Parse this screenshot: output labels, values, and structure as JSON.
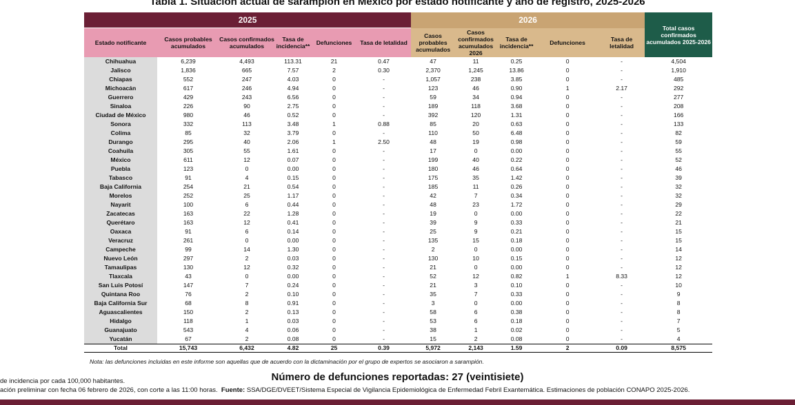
{
  "title": "Tabla 1. Situación actual de sarampión en México por estado notificante y año de registro, 2025-2026",
  "table": {
    "groups": [
      "2025",
      "2026",
      "Total casos confirmados acumulados 2025-2026"
    ],
    "columns": [
      "Estado notificante",
      "Casos probables acumulados",
      "Casos confirmados acumulados",
      "Tasa de incidencia**",
      "Defunciones",
      "Tasa de letalidad",
      "Casos probables acumulados",
      "Casos confirmados acumulados 2026",
      "Tasa de incidencia**",
      "Defunciones",
      "Tasa de letalidad"
    ],
    "rows": [
      [
        "Chihuahua",
        "6,239",
        "4,493",
        "113.31",
        "21",
        "0.47",
        "47",
        "11",
        "0.25",
        "0",
        "-",
        "4,504"
      ],
      [
        "Jalisco",
        "1,836",
        "665",
        "7.57",
        "2",
        "0.30",
        "2,370",
        "1,245",
        "13.86",
        "0",
        "-",
        "1,910"
      ],
      [
        "Chiapas",
        "552",
        "247",
        "4.03",
        "0",
        "-",
        "1,057",
        "238",
        "3.85",
        "0",
        "-",
        "485"
      ],
      [
        "Michoacán",
        "617",
        "246",
        "4.94",
        "0",
        "-",
        "123",
        "46",
        "0.90",
        "1",
        "2.17",
        "292"
      ],
      [
        "Guerrero",
        "429",
        "243",
        "6.56",
        "0",
        "-",
        "59",
        "34",
        "0.94",
        "0",
        "-",
        "277"
      ],
      [
        "Sinaloa",
        "226",
        "90",
        "2.75",
        "0",
        "-",
        "189",
        "118",
        "3.68",
        "0",
        "-",
        "208"
      ],
      [
        "Ciudad de México",
        "980",
        "46",
        "0.52",
        "0",
        "-",
        "392",
        "120",
        "1.31",
        "0",
        "-",
        "166"
      ],
      [
        "Sonora",
        "332",
        "113",
        "3.48",
        "1",
        "0.88",
        "85",
        "20",
        "0.63",
        "0",
        "-",
        "133"
      ],
      [
        "Colima",
        "85",
        "32",
        "3.79",
        "0",
        "-",
        "110",
        "50",
        "6.48",
        "0",
        "-",
        "82"
      ],
      [
        "Durango",
        "295",
        "40",
        "2.06",
        "1",
        "2.50",
        "48",
        "19",
        "0.98",
        "0",
        "-",
        "59"
      ],
      [
        "Coahuila",
        "305",
        "55",
        "1.61",
        "0",
        "-",
        "17",
        "0",
        "0.00",
        "0",
        "-",
        "55"
      ],
      [
        "México",
        "611",
        "12",
        "0.07",
        "0",
        "-",
        "199",
        "40",
        "0.22",
        "0",
        "-",
        "52"
      ],
      [
        "Puebla",
        "123",
        "0",
        "0.00",
        "0",
        "-",
        "180",
        "46",
        "0.64",
        "0",
        "-",
        "46"
      ],
      [
        "Tabasco",
        "91",
        "4",
        "0.15",
        "0",
        "-",
        "175",
        "35",
        "1.42",
        "0",
        "-",
        "39"
      ],
      [
        "Baja California",
        "254",
        "21",
        "0.54",
        "0",
        "-",
        "185",
        "11",
        "0.26",
        "0",
        "-",
        "32"
      ],
      [
        "Morelos",
        "252",
        "25",
        "1.17",
        "0",
        "-",
        "42",
        "7",
        "0.34",
        "0",
        "-",
        "32"
      ],
      [
        "Nayarit",
        "100",
        "6",
        "0.44",
        "0",
        "-",
        "48",
        "23",
        "1.72",
        "0",
        "-",
        "29"
      ],
      [
        "Zacatecas",
        "163",
        "22",
        "1.28",
        "0",
        "-",
        "19",
        "0",
        "0.00",
        "0",
        "-",
        "22"
      ],
      [
        "Querétaro",
        "163",
        "12",
        "0.41",
        "0",
        "-",
        "39",
        "9",
        "0.33",
        "0",
        "-",
        "21"
      ],
      [
        "Oaxaca",
        "91",
        "6",
        "0.14",
        "0",
        "-",
        "25",
        "9",
        "0.21",
        "0",
        "-",
        "15"
      ],
      [
        "Veracruz",
        "261",
        "0",
        "0.00",
        "0",
        "-",
        "135",
        "15",
        "0.18",
        "0",
        "-",
        "15"
      ],
      [
        "Campeche",
        "99",
        "14",
        "1.30",
        "0",
        "-",
        "2",
        "0",
        "0.00",
        "0",
        "-",
        "14"
      ],
      [
        "Nuevo León",
        "297",
        "2",
        "0.03",
        "0",
        "-",
        "130",
        "10",
        "0.15",
        "0",
        "-",
        "12"
      ],
      [
        "Tamaulipas",
        "130",
        "12",
        "0.32",
        "0",
        "-",
        "21",
        "0",
        "0.00",
        "0",
        "-",
        "12"
      ],
      [
        "Tlaxcala",
        "43",
        "0",
        "0.00",
        "0",
        "-",
        "52",
        "12",
        "0.82",
        "1",
        "8.33",
        "12"
      ],
      [
        "San Luis Potosí",
        "147",
        "7",
        "0.24",
        "0",
        "-",
        "21",
        "3",
        "0.10",
        "0",
        "-",
        "10"
      ],
      [
        "Quintana Roo",
        "76",
        "2",
        "0.10",
        "0",
        "-",
        "35",
        "7",
        "0.33",
        "0",
        "-",
        "9"
      ],
      [
        "Baja California Sur",
        "68",
        "8",
        "0.91",
        "0",
        "-",
        "3",
        "0",
        "0.00",
        "0",
        "-",
        "8"
      ],
      [
        "Aguascalientes",
        "150",
        "2",
        "0.13",
        "0",
        "-",
        "58",
        "6",
        "0.38",
        "0",
        "-",
        "8"
      ],
      [
        "Hidalgo",
        "118",
        "1",
        "0.03",
        "0",
        "-",
        "53",
        "6",
        "0.18",
        "0",
        "-",
        "7"
      ],
      [
        "Guanajuato",
        "543",
        "4",
        "0.06",
        "0",
        "-",
        "38",
        "1",
        "0.02",
        "0",
        "-",
        "5"
      ],
      [
        "Yucatán",
        "67",
        "2",
        "0.08",
        "0",
        "-",
        "15",
        "2",
        "0.08",
        "0",
        "-",
        "4"
      ]
    ],
    "total": [
      "Total",
      "15,743",
      "6,432",
      "4.82",
      "25",
      "0.39",
      "5,972",
      "2,143",
      "1.59",
      "2",
      "0.09",
      "8,575"
    ]
  },
  "note": "Nota: las defunciones incluidas en este informe son aquellas que de acuerdo con la dictaminación por el grupo de expertos se asociaron a sarampión.",
  "deaths_summary": "Número de defunciones reportadas: 27 (veintisiete)",
  "footnote_1": "de incidencia por cada 100,000 habitantes.",
  "footnote_2": {
    "text": "ación preliminar con fecha 06 febrero de 2026, con corte a las 11:00 horas.",
    "source_label": "Fuente:",
    "source": "SSA/DGE/DVEET/Sistema Especial de Vigilancia Epidemiológica de Enfermedad Febril Exantemática. Estimaciones de población CONAPO 2025-2026."
  }
}
